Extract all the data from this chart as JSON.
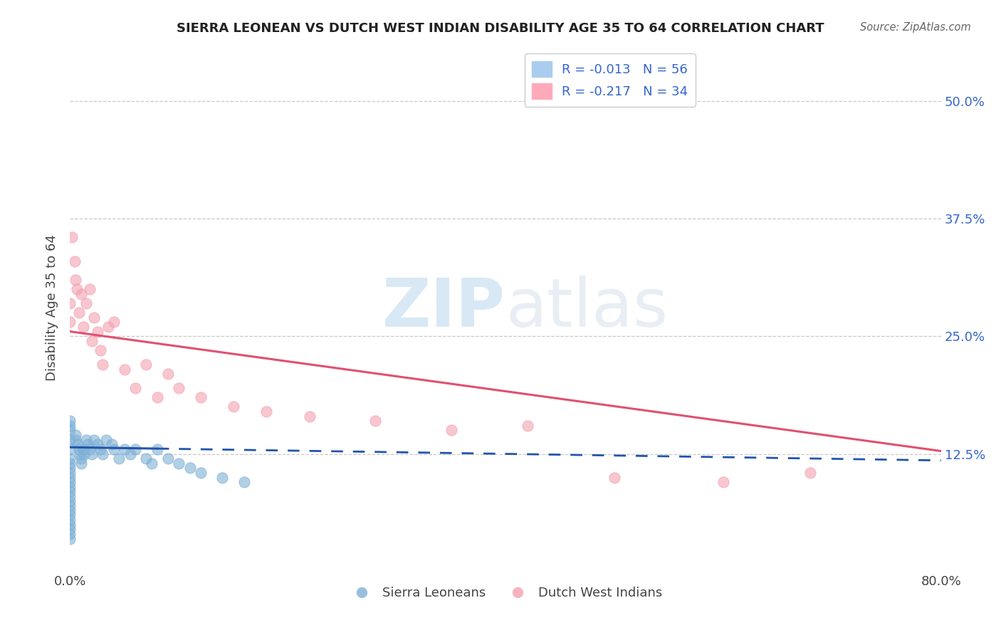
{
  "title": "SIERRA LEONEAN VS DUTCH WEST INDIAN DISABILITY AGE 35 TO 64 CORRELATION CHART",
  "source": "Source: ZipAtlas.com",
  "ylabel": "Disability Age 35 to 64",
  "ytick_labels": [
    "12.5%",
    "25.0%",
    "37.5%",
    "50.0%"
  ],
  "ytick_values": [
    0.125,
    0.25,
    0.375,
    0.5
  ],
  "xlim": [
    0.0,
    0.8
  ],
  "ylim": [
    0.0,
    0.56
  ],
  "blue_R": -0.013,
  "blue_N": 56,
  "pink_R": -0.217,
  "pink_N": 34,
  "blue_color": "#7EB0D5",
  "pink_color": "#F4A0B0",
  "blue_line_color": "#2255AA",
  "pink_line_color": "#E05070",
  "background_color": "#FFFFFF",
  "grid_color": "#BBBBBB",
  "watermark_color": "#D8E8F5",
  "blue_line_y0": 0.132,
  "blue_line_y1": 0.118,
  "pink_line_y0": 0.255,
  "pink_line_y1": 0.128,
  "blue_dots_x": [
    0.0,
    0.0,
    0.0,
    0.0,
    0.0,
    0.0,
    0.0,
    0.0,
    0.0,
    0.0,
    0.0,
    0.0,
    0.0,
    0.0,
    0.0,
    0.0,
    0.0,
    0.0,
    0.0,
    0.0,
    0.0,
    0.0,
    0.0,
    0.005,
    0.005,
    0.007,
    0.008,
    0.009,
    0.01,
    0.01,
    0.012,
    0.013,
    0.015,
    0.016,
    0.018,
    0.02,
    0.022,
    0.025,
    0.028,
    0.03,
    0.033,
    0.038,
    0.04,
    0.045,
    0.05,
    0.055,
    0.06,
    0.07,
    0.075,
    0.08,
    0.09,
    0.1,
    0.11,
    0.12,
    0.14,
    0.16
  ],
  "blue_dots_y": [
    0.14,
    0.13,
    0.12,
    0.115,
    0.11,
    0.105,
    0.1,
    0.095,
    0.09,
    0.085,
    0.08,
    0.075,
    0.07,
    0.065,
    0.06,
    0.055,
    0.05,
    0.045,
    0.04,
    0.035,
    0.16,
    0.155,
    0.15,
    0.145,
    0.14,
    0.135,
    0.13,
    0.125,
    0.12,
    0.115,
    0.13,
    0.125,
    0.14,
    0.135,
    0.13,
    0.125,
    0.14,
    0.135,
    0.13,
    0.125,
    0.14,
    0.135,
    0.13,
    0.12,
    0.13,
    0.125,
    0.13,
    0.12,
    0.115,
    0.13,
    0.12,
    0.115,
    0.11,
    0.105,
    0.1,
    0.095
  ],
  "pink_dots_x": [
    0.0,
    0.0,
    0.005,
    0.008,
    0.01,
    0.012,
    0.015,
    0.018,
    0.02,
    0.022,
    0.025,
    0.028,
    0.03,
    0.035,
    0.04,
    0.05,
    0.06,
    0.07,
    0.08,
    0.09,
    0.1,
    0.12,
    0.15,
    0.18,
    0.22,
    0.28,
    0.35,
    0.42,
    0.5,
    0.6,
    0.68,
    0.002,
    0.004,
    0.006
  ],
  "pink_dots_y": [
    0.285,
    0.265,
    0.31,
    0.275,
    0.295,
    0.26,
    0.285,
    0.3,
    0.245,
    0.27,
    0.255,
    0.235,
    0.22,
    0.26,
    0.265,
    0.215,
    0.195,
    0.22,
    0.185,
    0.21,
    0.195,
    0.185,
    0.175,
    0.17,
    0.165,
    0.16,
    0.15,
    0.155,
    0.1,
    0.095,
    0.105,
    0.355,
    0.33,
    0.3
  ]
}
